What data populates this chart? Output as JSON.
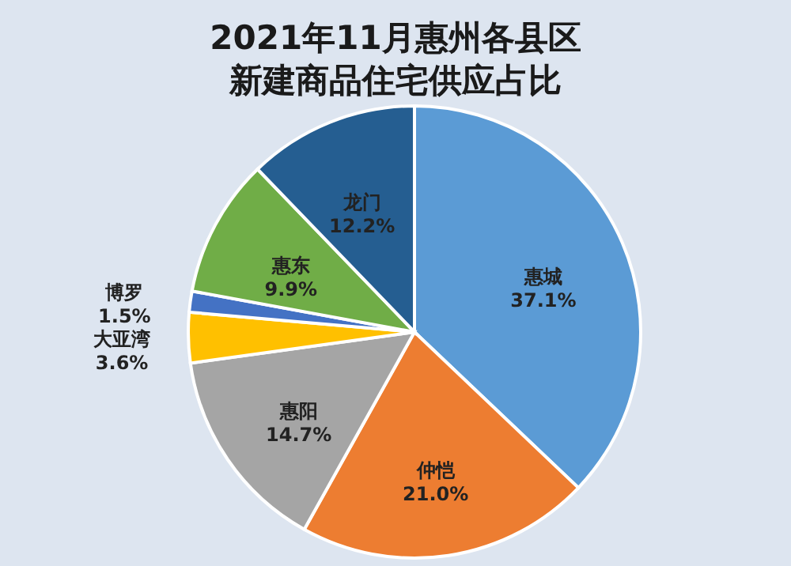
{
  "chart_data": {
    "type": "pie",
    "title": [
      "2021年11月惠州各县区",
      "新建商品住宅供应占比"
    ],
    "categories": [
      "惠城",
      "仲恺",
      "惠阳",
      "大亚湾",
      "博罗",
      "惠东",
      "龙门"
    ],
    "values": [
      37.1,
      21.0,
      14.7,
      3.6,
      1.5,
      9.9,
      12.2
    ],
    "value_labels": [
      "37.1%",
      "21.0%",
      "14.7%",
      "3.6%",
      "1.5%",
      "9.9%",
      "12.2%"
    ],
    "colors": [
      "#5b9bd5",
      "#ed7d31",
      "#a5a5a5",
      "#ffc000",
      "#4472c4",
      "#70ad47",
      "#255e91"
    ],
    "legend": false
  }
}
